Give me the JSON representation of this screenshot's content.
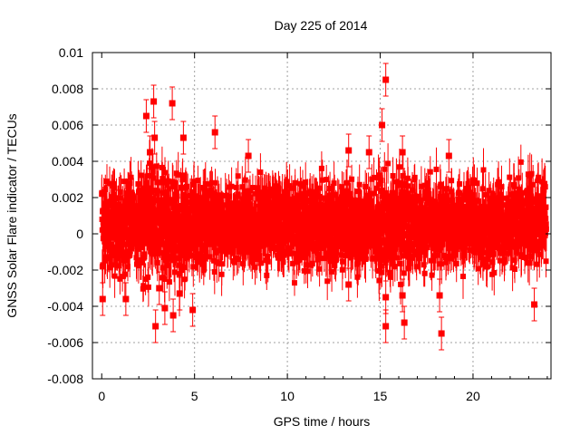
{
  "chart_data": {
    "type": "scatter",
    "title": "Day 225 of 2014",
    "xlabel": "GPS time / hours",
    "ylabel": "GNSS Solar Flare indicator / TECUs",
    "xlim": [
      -0.5,
      24.2
    ],
    "ylim": [
      -0.008,
      0.01
    ],
    "x_ticks": [
      0,
      5,
      10,
      15,
      20
    ],
    "x_tick_labels": [
      "0",
      "5",
      "10",
      "15",
      "20"
    ],
    "y_ticks": [
      -0.008,
      -0.006,
      -0.004,
      -0.002,
      0,
      0.002,
      0.004,
      0.006,
      0.008,
      0.01
    ],
    "y_tick_labels": [
      "-0.008",
      "-0.006",
      "-0.004",
      "-0.002",
      "0",
      "0.002",
      "0.004",
      "0.006",
      "0.008",
      "0.01"
    ],
    "grid": true,
    "legend": "none",
    "marker": "square",
    "error_bars": true,
    "color": "#ff0000",
    "series_note": "dense noise band of ~2900 points between -0.003 and 0.004 TECU with error bars ~0.001",
    "outliers": [
      {
        "x": 0.05,
        "y": -0.0036
      },
      {
        "x": 1.3,
        "y": -0.0036
      },
      {
        "x": 2.4,
        "y": 0.0065
      },
      {
        "x": 2.6,
        "y": 0.0045
      },
      {
        "x": 2.8,
        "y": 0.0073
      },
      {
        "x": 2.9,
        "y": -0.0051
      },
      {
        "x": 2.85,
        "y": 0.0053
      },
      {
        "x": 3.1,
        "y": -0.003
      },
      {
        "x": 3.4,
        "y": -0.0041
      },
      {
        "x": 3.8,
        "y": 0.0072
      },
      {
        "x": 3.85,
        "y": -0.0045
      },
      {
        "x": 4.2,
        "y": -0.0033
      },
      {
        "x": 4.4,
        "y": 0.0053
      },
      {
        "x": 4.9,
        "y": -0.0042
      },
      {
        "x": 6.1,
        "y": 0.0056
      },
      {
        "x": 7.9,
        "y": 0.0043
      },
      {
        "x": 13.3,
        "y": 0.0046
      },
      {
        "x": 13.3,
        "y": -0.0028
      },
      {
        "x": 14.4,
        "y": 0.0045
      },
      {
        "x": 15.1,
        "y": 0.006
      },
      {
        "x": 15.3,
        "y": 0.0085
      },
      {
        "x": 15.3,
        "y": -0.0051
      },
      {
        "x": 15.3,
        "y": -0.0035
      },
      {
        "x": 16.2,
        "y": -0.0034
      },
      {
        "x": 16.3,
        "y": -0.0049
      },
      {
        "x": 16.2,
        "y": 0.0045
      },
      {
        "x": 18.3,
        "y": -0.0055
      },
      {
        "x": 18.2,
        "y": -0.0034
      },
      {
        "x": 18.7,
        "y": 0.0043
      },
      {
        "x": 23.3,
        "y": -0.0039
      }
    ]
  }
}
